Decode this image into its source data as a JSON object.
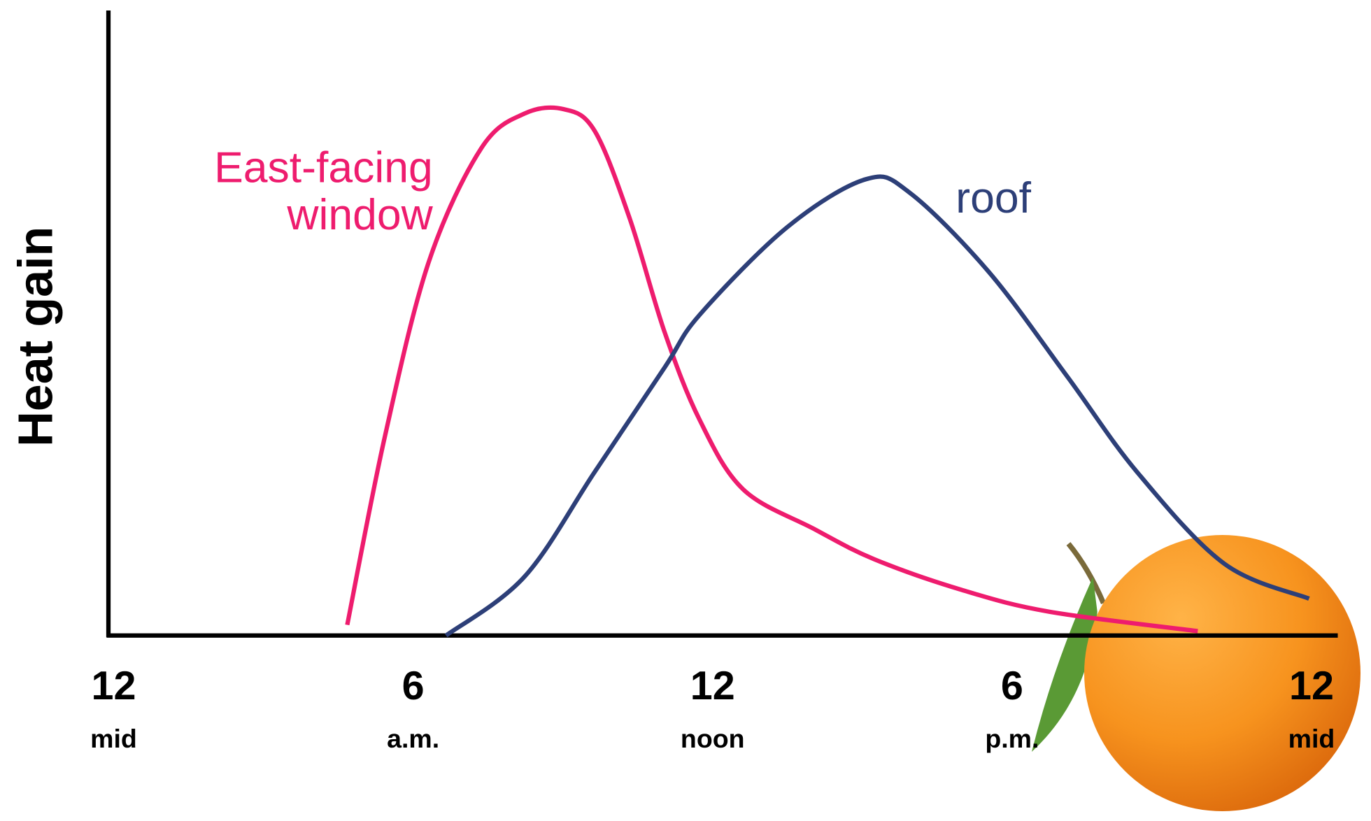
{
  "chart_data": {
    "type": "line",
    "ylabel": "Heat gain",
    "xlim": [
      0,
      24
    ],
    "ylim": [
      0,
      100
    ],
    "xticks": [
      {
        "value": 0,
        "label": "12",
        "sublabel": "mid"
      },
      {
        "value": 6,
        "label": "6",
        "sublabel": "a.m."
      },
      {
        "value": 12,
        "label": "12",
        "sublabel": "noon"
      },
      {
        "value": 18,
        "label": "6",
        "sublabel": "p.m."
      },
      {
        "value": 24,
        "label": "12",
        "sublabel": "mid"
      }
    ],
    "series": [
      {
        "color": "#ee1c6e",
        "x": [
          4.68,
          5.43,
          6.31,
          7.36,
          8.23,
          9.02,
          9.64,
          10.34,
          11.04,
          11.74,
          12.61,
          14.02,
          15.24,
          16.99,
          18.75,
          21.72
        ],
        "values": [
          1.7,
          31.7,
          59.7,
          77.9,
          83.5,
          84.2,
          80.7,
          66.7,
          48.5,
          34.5,
          23.4,
          17.1,
          12.2,
          7.3,
          3.8,
          0.7
        ]
      },
      {
        "color": "#2d3f78",
        "x": [
          6.66,
          8.23,
          9.64,
          11.04,
          11.74,
          13.49,
          15.07,
          15.94,
          17.52,
          19.1,
          20.5,
          22.25,
          23.95
        ],
        "values": [
          0,
          9.4,
          26.2,
          42.9,
          51.3,
          65.3,
          73.0,
          70.9,
          58.3,
          41.5,
          26.2,
          11.5,
          5.9
        ]
      }
    ],
    "annotations": [
      {
        "lines": [
          "East-facing",
          "window"
        ],
        "color": "#ee1c6e"
      },
      {
        "lines": [
          "roof"
        ],
        "color": "#2d3f78"
      }
    ]
  }
}
